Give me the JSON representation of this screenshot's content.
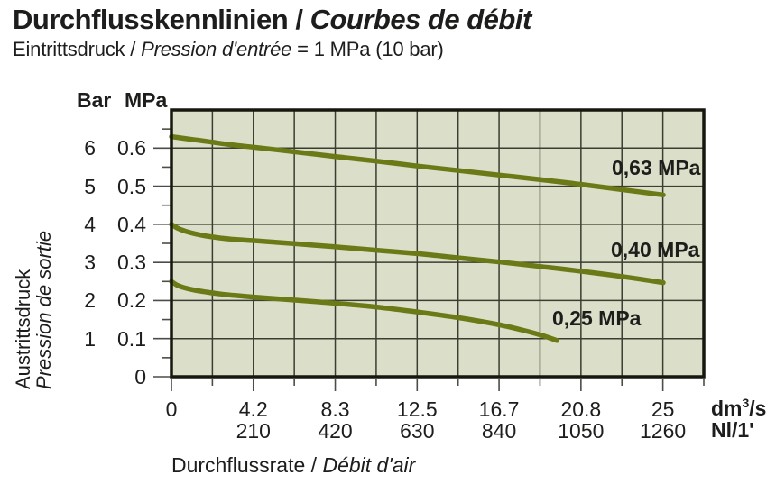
{
  "header": {
    "title_de": "Durchflusskennlinien /",
    "title_fr": "Courbes de débit",
    "subtitle_de": "Eintrittsdruck /",
    "subtitle_fr": "Pression d'entrée",
    "subtitle_value": "= 1 MPa (10 bar)"
  },
  "y_axis": {
    "header_primary": "Bar",
    "header_secondary": "MPa",
    "label_de": "Austrittsdruck",
    "label_fr": "Pression de sortie"
  },
  "x_axis": {
    "label_de": "Durchflussrate /",
    "label_fr": "Débit d'air",
    "unit_primary": {
      "base": "dm",
      "sup": "3",
      "rest": "/s"
    },
    "unit_secondary": "Nl/1'"
  },
  "chart_data": {
    "type": "line",
    "title": "Durchflusskennlinien / Courbes de débit",
    "subtitle": "Eintrittsdruck / Pression d'entrée = 1 MPa (10 bar)",
    "xlabel": "Durchflussrate / Débit d'air",
    "ylabel": "Austrittsdruck / Pression de sortie",
    "x_unit_primary": "dm3/s",
    "x_unit_secondary": "Nl/1'",
    "y_unit_primary": "bar",
    "y_unit_secondary": "MPa",
    "xlim": [
      0,
      27.1
    ],
    "ylim": [
      0,
      0.7
    ],
    "grid": true,
    "x_ticks_primary": [
      "0",
      "4.2",
      "8.3",
      "12.5",
      "16.7",
      "20.8",
      "25"
    ],
    "x_ticks_secondary": [
      "210",
      "420",
      "630",
      "840",
      "1050",
      "1260"
    ],
    "y_ticks_bar": [
      "6",
      "5",
      "4",
      "3",
      "2",
      "1"
    ],
    "y_ticks_mpa": [
      "0.6",
      "0.5",
      "0.4",
      "0.3",
      "0.2",
      "0.1",
      "0"
    ],
    "series": [
      {
        "name": "0,63 MPa",
        "inlet_pressure_mpa": 0.63,
        "points": [
          [
            0,
            0.63
          ],
          [
            1,
            0.623
          ],
          [
            2,
            0.616
          ],
          [
            3,
            0.609
          ],
          [
            4.2,
            0.602
          ],
          [
            6.3,
            0.59
          ],
          [
            8.3,
            0.578
          ],
          [
            10.4,
            0.566
          ],
          [
            12.5,
            0.553
          ],
          [
            14.6,
            0.541
          ],
          [
            16.7,
            0.529
          ],
          [
            18.8,
            0.517
          ],
          [
            20.8,
            0.505
          ],
          [
            22.9,
            0.491
          ],
          [
            25,
            0.477
          ]
        ]
      },
      {
        "name": "0,40 MPa",
        "inlet_pressure_mpa": 0.4,
        "points": [
          [
            0,
            0.4
          ],
          [
            0.3,
            0.39
          ],
          [
            0.7,
            0.382
          ],
          [
            1.2,
            0.375
          ],
          [
            1.8,
            0.369
          ],
          [
            2.5,
            0.364
          ],
          [
            3.3,
            0.36
          ],
          [
            4.2,
            0.357
          ],
          [
            6.3,
            0.349
          ],
          [
            8.3,
            0.341
          ],
          [
            10.4,
            0.332
          ],
          [
            12.5,
            0.323
          ],
          [
            14.6,
            0.312
          ],
          [
            16.7,
            0.301
          ],
          [
            18.8,
            0.289
          ],
          [
            20.8,
            0.277
          ],
          [
            22.9,
            0.263
          ],
          [
            25,
            0.247
          ]
        ]
      },
      {
        "name": "0,25 MPa",
        "inlet_pressure_mpa": 0.25,
        "points": [
          [
            0,
            0.25
          ],
          [
            0.3,
            0.24
          ],
          [
            0.7,
            0.233
          ],
          [
            1.2,
            0.227
          ],
          [
            1.8,
            0.222
          ],
          [
            2.5,
            0.217
          ],
          [
            3.3,
            0.213
          ],
          [
            4.2,
            0.209
          ],
          [
            6.3,
            0.201
          ],
          [
            8.3,
            0.193
          ],
          [
            10.4,
            0.183
          ],
          [
            12.5,
            0.17
          ],
          [
            14.6,
            0.155
          ],
          [
            16.7,
            0.136
          ],
          [
            17.8,
            0.123
          ],
          [
            18.8,
            0.109
          ],
          [
            19.6,
            0.095
          ]
        ]
      }
    ],
    "colors": {
      "curve": "#6b7a17",
      "plot_bg": "#dbdfc9",
      "grid_line": "#3a3d30",
      "border": "#17170e",
      "tick": "#4d4d45",
      "text": "#1d1d1b"
    }
  }
}
